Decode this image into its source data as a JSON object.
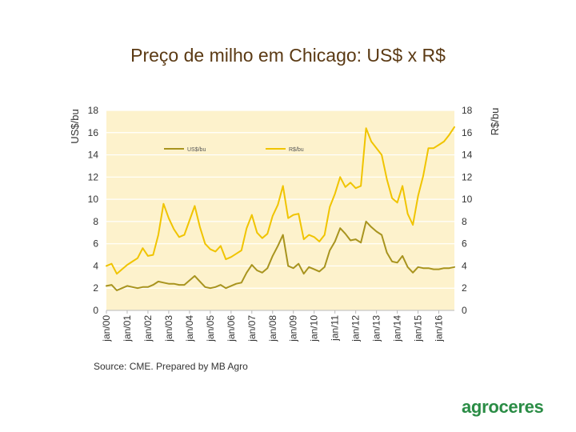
{
  "slide": {
    "title": "Preço de milho em Chicago: US$ x R$",
    "source": "Source: CME. Prepared by MB Agro",
    "logo_text": "agroceres"
  },
  "colors": {
    "plot_background": "#fdf2cc",
    "usd_line": "#a8941f",
    "brl_line": "#f0c400",
    "grid": "#ffffff",
    "axis_text": "#333333",
    "title": "#5b3a14",
    "logo": "#2a8c45"
  },
  "chart_data": {
    "type": "line",
    "title": "Preço de milho em Chicago: US$ x R$",
    "y_left_label": "US$/bu",
    "y_right_label": "R$/bu",
    "y_left_lim": [
      0,
      18
    ],
    "y_right_lim": [
      0,
      18
    ],
    "y_ticks": [
      "0",
      "2",
      "4",
      "6",
      "8",
      "10",
      "12",
      "14",
      "16",
      "18"
    ],
    "x_range": [
      2000.0,
      2016.75
    ],
    "x_tick_labels": [
      "jan/00",
      "jan/01",
      "jan/02",
      "jan/03",
      "jan/04",
      "jan/05",
      "jan/06",
      "jan/07",
      "jan/08",
      "jan/09",
      "jan/10",
      "jan/11",
      "jan/12",
      "jan/13",
      "jan/14",
      "jan/15",
      "jan/16"
    ],
    "legend": [
      "US$/bu",
      "R$/bu"
    ],
    "legend_position": "top",
    "grid": true,
    "series": [
      {
        "name": "US$/bu",
        "axis": "left",
        "x": [
          2000.0,
          2000.25,
          2000.5,
          2000.75,
          2001.0,
          2001.25,
          2001.5,
          2001.75,
          2002.0,
          2002.25,
          2002.5,
          2002.75,
          2003.0,
          2003.25,
          2003.5,
          2003.75,
          2004.0,
          2004.25,
          2004.5,
          2004.75,
          2005.0,
          2005.25,
          2005.5,
          2005.75,
          2006.0,
          2006.25,
          2006.5,
          2006.75,
          2007.0,
          2007.25,
          2007.5,
          2007.75,
          2008.0,
          2008.25,
          2008.5,
          2008.75,
          2009.0,
          2009.25,
          2009.5,
          2009.75,
          2010.0,
          2010.25,
          2010.5,
          2010.75,
          2011.0,
          2011.25,
          2011.5,
          2011.75,
          2012.0,
          2012.25,
          2012.5,
          2012.75,
          2013.0,
          2013.25,
          2013.5,
          2013.75,
          2014.0,
          2014.25,
          2014.5,
          2014.75,
          2015.0,
          2015.25,
          2015.5,
          2015.75,
          2016.0,
          2016.25,
          2016.5,
          2016.75
        ],
        "values": [
          2.2,
          2.3,
          1.8,
          2.0,
          2.2,
          2.1,
          2.0,
          2.1,
          2.1,
          2.3,
          2.6,
          2.5,
          2.4,
          2.4,
          2.3,
          2.3,
          2.7,
          3.1,
          2.6,
          2.1,
          2.0,
          2.1,
          2.3,
          2.0,
          2.2,
          2.4,
          2.5,
          3.4,
          4.1,
          3.6,
          3.4,
          3.8,
          4.9,
          5.8,
          6.8,
          4.0,
          3.8,
          4.2,
          3.3,
          3.9,
          3.7,
          3.5,
          3.9,
          5.4,
          6.2,
          7.4,
          6.9,
          6.3,
          6.4,
          6.1,
          8.0,
          7.5,
          7.1,
          6.8,
          5.2,
          4.4,
          4.3,
          4.9,
          3.9,
          3.4,
          3.9,
          3.8,
          3.8,
          3.7,
          3.7,
          3.8,
          3.8,
          3.9
        ]
      },
      {
        "name": "R$/bu",
        "axis": "right",
        "x": [
          2000.0,
          2000.25,
          2000.5,
          2000.75,
          2001.0,
          2001.25,
          2001.5,
          2001.75,
          2002.0,
          2002.25,
          2002.5,
          2002.75,
          2003.0,
          2003.25,
          2003.5,
          2003.75,
          2004.0,
          2004.25,
          2004.5,
          2004.75,
          2005.0,
          2005.25,
          2005.5,
          2005.75,
          2006.0,
          2006.25,
          2006.5,
          2006.75,
          2007.0,
          2007.25,
          2007.5,
          2007.75,
          2008.0,
          2008.25,
          2008.5,
          2008.75,
          2009.0,
          2009.25,
          2009.5,
          2009.75,
          2010.0,
          2010.25,
          2010.5,
          2010.75,
          2011.0,
          2011.25,
          2011.5,
          2011.75,
          2012.0,
          2012.25,
          2012.5,
          2012.75,
          2013.0,
          2013.25,
          2013.5,
          2013.75,
          2014.0,
          2014.25,
          2014.5,
          2014.75,
          2015.0,
          2015.25,
          2015.5,
          2015.75,
          2016.0,
          2016.25,
          2016.5,
          2016.75
        ],
        "values": [
          4.0,
          4.2,
          3.3,
          3.7,
          4.1,
          4.4,
          4.7,
          5.6,
          4.9,
          5.0,
          6.8,
          9.6,
          8.3,
          7.3,
          6.6,
          6.8,
          8.1,
          9.4,
          7.5,
          6.0,
          5.5,
          5.3,
          5.8,
          4.6,
          4.8,
          5.1,
          5.4,
          7.4,
          8.6,
          7.0,
          6.5,
          6.9,
          8.5,
          9.5,
          11.2,
          8.3,
          8.6,
          8.7,
          6.4,
          6.8,
          6.6,
          6.2,
          6.8,
          9.3,
          10.5,
          12.0,
          11.1,
          11.5,
          11.0,
          11.2,
          16.4,
          15.2,
          14.6,
          14.0,
          11.8,
          10.1,
          9.7,
          11.2,
          8.7,
          7.7,
          10.3,
          12.1,
          14.6,
          14.6,
          14.9,
          15.2,
          15.8,
          16.5
        ]
      }
    ]
  }
}
